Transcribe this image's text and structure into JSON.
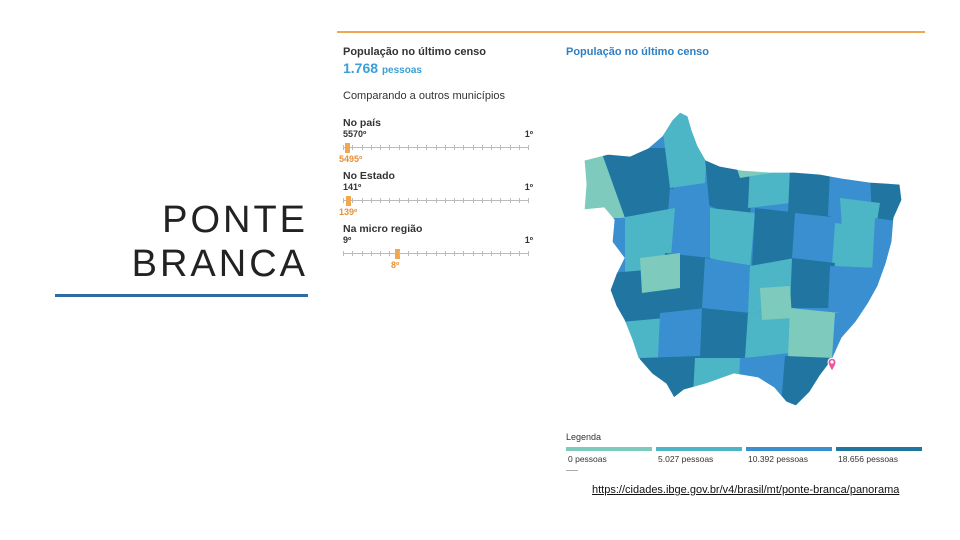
{
  "slide": {
    "title_line1": "PONTE",
    "title_line2": "BRANCA"
  },
  "panel": {
    "pop_label": "População no último censo",
    "pop_value": "1.768",
    "pop_unit": "pessoas",
    "compare_label": "Comparando a outros municípios",
    "ranks": [
      {
        "label": "No país",
        "left": "5570º",
        "right": "1º",
        "marker": "5495º",
        "position": 0.013
      },
      {
        "label": "No Estado",
        "left": "141º",
        "right": "1º",
        "marker": "139º",
        "position": 0.014
      },
      {
        "label": "Na micro região",
        "left": "9º",
        "right": "1º",
        "marker": "8º",
        "position": 0.286
      }
    ]
  },
  "map": {
    "title": "População no último censo",
    "marker_icon": "location-pin-icon",
    "colors": {
      "c0": "#7ecbbd",
      "c1": "#4cb6c6",
      "c2": "#3a8fd0",
      "c3": "#2076a0"
    }
  },
  "legend": {
    "title": "Legenda",
    "items": [
      {
        "label": "0 pessoas",
        "color": "#7ecbbd"
      },
      {
        "label": "5.027 pessoas",
        "color": "#4cb6c6"
      },
      {
        "label": "10.392 pessoas",
        "color": "#3a8fd0"
      },
      {
        "label": "18.656 pessoas",
        "color": "#2076a0"
      }
    ]
  },
  "source": {
    "url": "https://cidades.ibge.gov.br/v4/brasil/mt/ponte-branca/panorama"
  }
}
